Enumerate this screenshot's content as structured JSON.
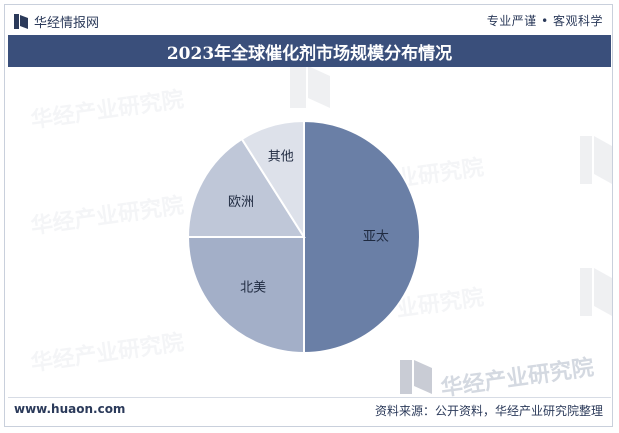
{
  "header": {
    "brand_name": "华经情报网",
    "slogan": "专业严谨 • 客观科学"
  },
  "chart_data": {
    "type": "pie",
    "title": "2023年全球催化剂市场规模分布情况",
    "slices": [
      {
        "label": "亚太",
        "value": 50,
        "color": "#6a7fa6"
      },
      {
        "label": "北美",
        "value": 25,
        "color": "#a3afc8"
      },
      {
        "label": "欧洲",
        "value": 16,
        "color": "#bfc7d8"
      },
      {
        "label": "其他",
        "value": 9,
        "color": "#dde1ea"
      }
    ],
    "start_angle": "12 o'clock, clockwise"
  },
  "watermark": {
    "text": "华经产业研究院",
    "url": "www.huaon.com"
  },
  "footer": {
    "website": "www.huaon.com",
    "source": "资料来源：公开资料，华经产业研究院整理"
  }
}
